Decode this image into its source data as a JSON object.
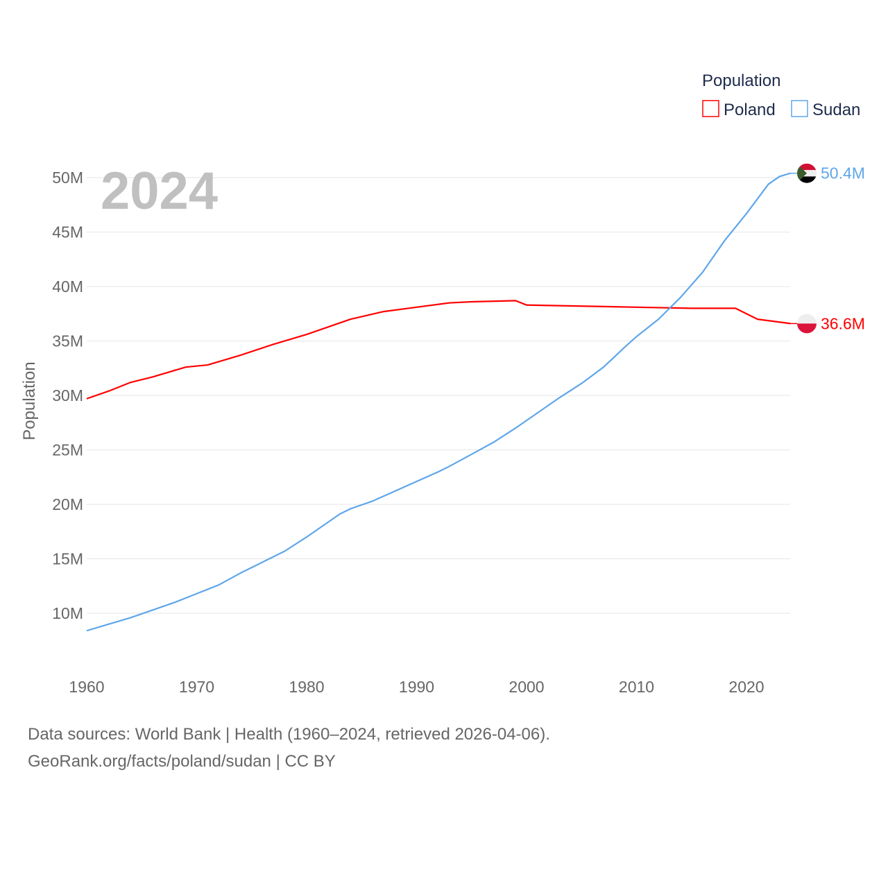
{
  "chart_data": {
    "type": "line",
    "year_label": "2024",
    "ylabel": "Population",
    "xlabel": "",
    "xlim": [
      1960,
      2024
    ],
    "ylim": [
      5,
      52
    ],
    "x_ticks": [
      "1960",
      "1970",
      "1980",
      "1990",
      "2000",
      "2010",
      "2020"
    ],
    "x_tick_values": [
      1960,
      1970,
      1980,
      1990,
      2000,
      2010,
      2020
    ],
    "y_ticks": [
      "10M",
      "15M",
      "20M",
      "25M",
      "30M",
      "35M",
      "40M",
      "45M",
      "50M"
    ],
    "y_tick_values": [
      10,
      15,
      20,
      25,
      30,
      35,
      40,
      45,
      50
    ],
    "grid": true,
    "legend": {
      "title": "Population",
      "placement": "top-right",
      "entries": [
        "Poland",
        "Sudan"
      ]
    },
    "series": [
      {
        "name": "Poland",
        "color": "#ff0000",
        "end_label": "36.6M",
        "x": [
          1960,
          1962,
          1964,
          1966,
          1969,
          1971,
          1974,
          1977,
          1980,
          1984,
          1987,
          1990,
          1993,
          1995,
          1999,
          2000,
          2005,
          2010,
          2015,
          2019,
          2021,
          2024
        ],
        "values": [
          29.7,
          30.4,
          31.2,
          31.7,
          32.6,
          32.8,
          33.7,
          34.7,
          35.6,
          37.0,
          37.7,
          38.1,
          38.5,
          38.6,
          38.7,
          38.3,
          38.2,
          38.1,
          38.0,
          38.0,
          37.0,
          36.6
        ]
      },
      {
        "name": "Sudan",
        "color": "#5ea6ea",
        "end_label": "50.4M",
        "x": [
          1960,
          1962,
          1964,
          1966,
          1968,
          1970,
          1972,
          1974,
          1976,
          1978,
          1980,
          1982,
          1983,
          1984,
          1986,
          1988,
          1990,
          1992,
          1993,
          1995,
          1997,
          1999,
          2001,
          2003,
          2005,
          2007,
          2009,
          2010,
          2012,
          2014,
          2016,
          2018,
          2020,
          2022,
          2023,
          2024
        ],
        "values": [
          8.4,
          9.0,
          9.6,
          10.3,
          11.0,
          11.8,
          12.6,
          13.7,
          14.7,
          15.7,
          17.0,
          18.4,
          19.1,
          19.6,
          20.3,
          21.2,
          22.1,
          23.0,
          23.5,
          24.6,
          25.7,
          27.0,
          28.4,
          29.8,
          31.1,
          32.6,
          34.5,
          35.4,
          37.0,
          39.0,
          41.3,
          44.2,
          46.7,
          49.4,
          50.1,
          50.4
        ]
      }
    ]
  },
  "footer": {
    "line1": "Data sources: World Bank | Health (1960–2024, retrieved 2026-04-06).",
    "line2": "GeoRank.org/facts/poland/sudan | CC BY"
  }
}
